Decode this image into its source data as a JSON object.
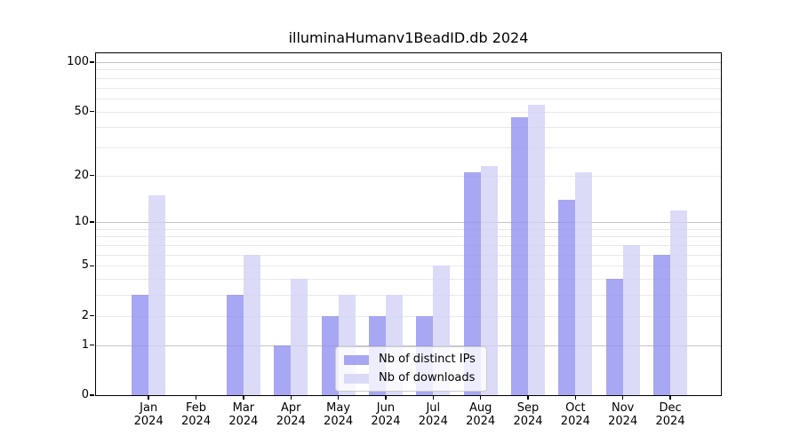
{
  "chart_data": {
    "type": "bar",
    "title": "illuminaHumanv1BeadID.db 2024",
    "categories": [
      "Jan",
      "Feb",
      "Mar",
      "Apr",
      "May",
      "Jun",
      "Jul",
      "Aug",
      "Sep",
      "Oct",
      "Nov",
      "Dec"
    ],
    "year_label": "2024",
    "series": [
      {
        "name": "Nb of distinct IPs",
        "color": "#9191f0",
        "values": [
          3,
          0,
          3,
          1,
          2,
          2,
          2,
          21,
          46,
          14,
          4,
          6
        ]
      },
      {
        "name": "Nb of downloads",
        "color": "#d2d2f6",
        "values": [
          15,
          0,
          6,
          4,
          3,
          3,
          5,
          23,
          55,
          21,
          7,
          12
        ]
      }
    ],
    "y_axis": {
      "scale": "log10(value+1)",
      "tick_labels": [
        100,
        50,
        20,
        10,
        5,
        2,
        1,
        0
      ],
      "range": [
        0,
        113
      ],
      "grid": "on"
    },
    "legend": {
      "position": "bottom-center"
    },
    "colors": {
      "background": "#ffffff",
      "major_grid": "#c4c4c4",
      "minor_grid": "#e9e9e9",
      "axis": "#000000"
    }
  }
}
